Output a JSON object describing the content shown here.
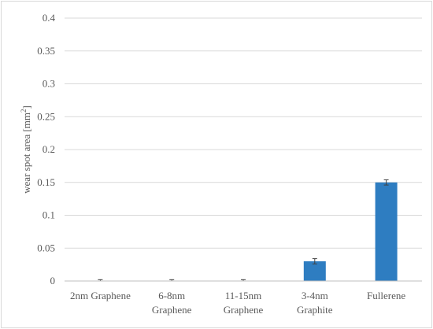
{
  "chart_data": {
    "type": "bar",
    "categories": [
      [
        "2nm Graphene"
      ],
      [
        "6-8nm",
        "Graphene"
      ],
      [
        "11-15nm",
        "Graphene"
      ],
      [
        "3-4nm",
        "Graphite"
      ],
      [
        "Fullerene"
      ]
    ],
    "values": [
      0,
      0,
      0,
      0.03,
      0.15
    ],
    "errors": [
      0.002,
      0.002,
      0.002,
      0.004,
      0.004
    ],
    "title": "",
    "xlabel": "",
    "ylabel": "wear spot area [mm",
    "ylabel_superscript": "2",
    "ylabel_suffix": "]",
    "ylim": [
      0,
      0.4
    ],
    "yticks": [
      "0",
      "0.05",
      "0.1",
      "0.15",
      "0.2",
      "0.25",
      "0.3",
      "0.35",
      "0.4"
    ],
    "grid": true,
    "legend": "none",
    "bar_color": "#2e7dc1",
    "grid_color": "#d9d9d9",
    "axis_color": "#bfbfbf",
    "error_color": "#404040"
  }
}
